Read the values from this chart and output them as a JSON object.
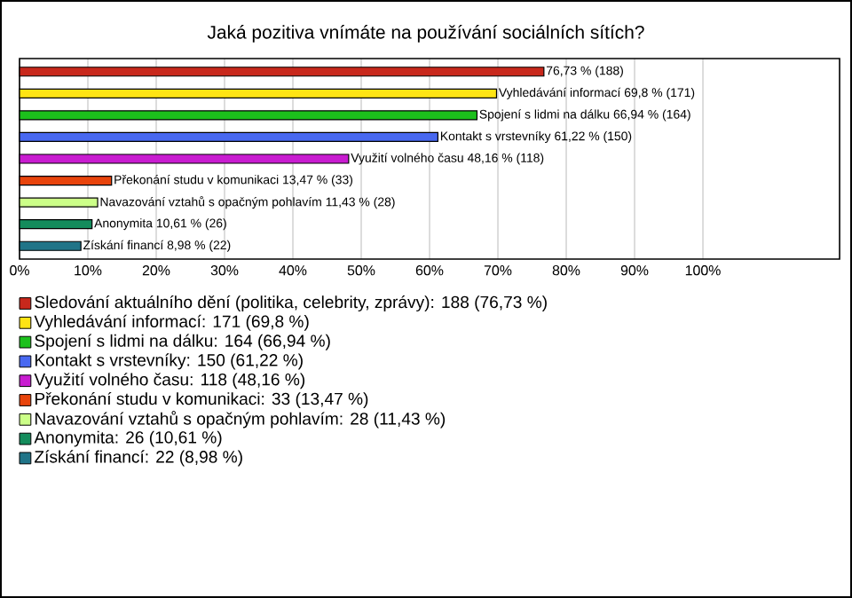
{
  "chart_data": {
    "type": "bar",
    "orientation": "horizontal",
    "title": "Jaká pozitiva vnímáte na používání sociálních sítích?",
    "categories": [
      null,
      null,
      null,
      null,
      null,
      null,
      null,
      null,
      null
    ],
    "series": [
      {
        "name": "Sledování aktuálního dění (politika, celebrity, zprávy): 188 (76,73 %)",
        "color": "#c8281c",
        "values": [
          76.73,
          null,
          null,
          null,
          null,
          null,
          null,
          null,
          null
        ],
        "value_labels": [
          "76,73 % (188)",
          null,
          null,
          null,
          null,
          null,
          null,
          null,
          null
        ]
      },
      {
        "name": "Vyhledávání informací: 171 (69,8 %)",
        "color": "#ffe414",
        "values": [
          null,
          69.8,
          null,
          null,
          null,
          null,
          null,
          null,
          null
        ],
        "value_labels": [
          null,
          "Vyhledávání informací 69,8 % (171)",
          null,
          null,
          null,
          null,
          null,
          null,
          null
        ]
      },
      {
        "name": "Spojení s lidmi na dálku: 164 (66,94 %)",
        "color": "#1cc01c",
        "values": [
          null,
          null,
          66.94,
          null,
          null,
          null,
          null,
          null,
          null
        ],
        "value_labels": [
          null,
          null,
          "Spojení s lidmi na dálku 66,94 % (164)",
          null,
          null,
          null,
          null,
          null,
          null
        ]
      },
      {
        "name": "Kontakt s vrstevníky: 150 (61,22 %)",
        "color": "#4868f0",
        "values": [
          null,
          null,
          null,
          61.22,
          null,
          null,
          null,
          null,
          null
        ],
        "value_labels": [
          null,
          null,
          null,
          "Kontakt s vrstevníky 61,22 % (150)",
          null,
          null,
          null,
          null,
          null
        ]
      },
      {
        "name": "Využití volného času: 118 (48,16 %)",
        "color": "#c81cd0",
        "values": [
          null,
          null,
          null,
          null,
          48.16,
          null,
          null,
          null,
          null
        ],
        "value_labels": [
          null,
          null,
          null,
          null,
          "Využití volného času 48,16 % (118)",
          null,
          null,
          null,
          null
        ]
      },
      {
        "name": "Překonání studu v komunikaci: 33 (13,47 %)",
        "color": "#e8440c",
        "values": [
          null,
          null,
          null,
          null,
          null,
          13.47,
          null,
          null,
          null
        ],
        "value_labels": [
          null,
          null,
          null,
          null,
          null,
          "Překonání studu v komunikaci 13,47 % (33)",
          null,
          null,
          null
        ]
      },
      {
        "name": "Navazování vztahů s opačným pohlavím: 28 (11,43 %)",
        "color": "#ccff88",
        "values": [
          null,
          null,
          null,
          null,
          null,
          null,
          11.43,
          null,
          null
        ],
        "value_labels": [
          null,
          null,
          null,
          null,
          null,
          null,
          "Navazování vztahů s opačným pohlavím 11,43 % (28)",
          null,
          null
        ]
      },
      {
        "name": "Anonymita: 26 (10,61 %)",
        "color": "#148c5c",
        "values": [
          null,
          null,
          null,
          null,
          null,
          null,
          null,
          10.61,
          null
        ],
        "value_labels": [
          null,
          null,
          null,
          null,
          null,
          null,
          null,
          "Anonymita 10,61 % (26)",
          null
        ]
      },
      {
        "name": "Získání financí: 22 (8,98 %)",
        "color": "#207488",
        "values": [
          null,
          null,
          null,
          null,
          null,
          null,
          null,
          null,
          8.98
        ],
        "value_labels": [
          null,
          null,
          null,
          null,
          null,
          null,
          null,
          null,
          "Získání financí 8,98 % (22)"
        ]
      }
    ],
    "xlim": [
      0,
      120
    ],
    "xticks": [
      {
        "value": 0,
        "label": "0%"
      },
      {
        "value": 10,
        "label": "10%"
      },
      {
        "value": 20,
        "label": "20%"
      },
      {
        "value": 30,
        "label": "30%"
      },
      {
        "value": 40,
        "label": "40%"
      },
      {
        "value": 50,
        "label": "50%"
      },
      {
        "value": 60,
        "label": "60%"
      },
      {
        "value": 70,
        "label": "70%"
      },
      {
        "value": 80,
        "label": "80%"
      },
      {
        "value": 90,
        "label": "90%"
      },
      {
        "value": 100,
        "label": "100%"
      }
    ],
    "grid": "x",
    "legend": "bottom",
    "tick_labels": "x"
  }
}
